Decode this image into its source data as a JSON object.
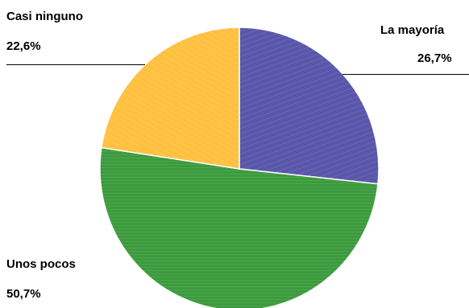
{
  "chart_data": {
    "type": "pie",
    "start_angle_deg": 0,
    "direction": "clockwise",
    "slices": [
      {
        "name": "La mayoría",
        "value_label": "26,7%",
        "value": 26.7,
        "color": "#5a57aa",
        "hatch": "#7a77c6"
      },
      {
        "name": "Unos pocos",
        "value_label": "50,7%",
        "value": 50.7,
        "color": "#3e9a3e",
        "hatch": "#57b457"
      },
      {
        "name": "Casi ninguno",
        "value_label": "22,6%",
        "value": 22.6,
        "color": "#ffc040",
        "hatch": "#ffd46e"
      }
    ]
  }
}
